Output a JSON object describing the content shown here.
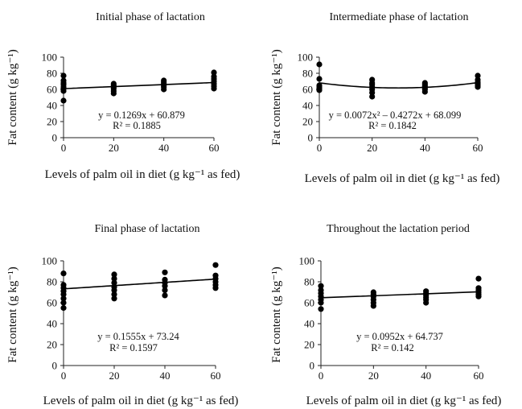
{
  "panels": [
    {
      "title": "Initial phase of lactation",
      "ylabel": "Fat content (g kg⁻¹)",
      "xlabel": "Levels of palm oil in diet (g kg⁻¹ as fed)",
      "equation": "y = 0.1269x + 60.879",
      "r2": "R² = 0.1885"
    },
    {
      "title": "Intermediate phase of lactation",
      "ylabel": "Fat content (g kg⁻¹)",
      "xlabel": "Levels of palm oil in diet (g kg⁻¹ as fed)",
      "equation": "y = 0.0072x² – 0.4272x + 68.099",
      "r2": "R² = 0.1842"
    },
    {
      "title": "Final phase of lactation",
      "ylabel": "Fat content (g kg⁻¹)",
      "xlabel": "Levels of palm oil in diet (g kg⁻¹ as fed)",
      "equation": "y = 0.1555x + 73.24",
      "r2": "R² = 0.1597"
    },
    {
      "title": "Throughout the lactation period",
      "ylabel": "Fat content (g kg⁻¹)",
      "xlabel": "Levels of palm oil in diet (g kg⁻¹ as fed)",
      "equation": "y = 0.0952x + 64.737",
      "r2": "R² = 0.142"
    }
  ],
  "chart_data": [
    {
      "type": "scatter",
      "title": "Initial phase of lactation",
      "xlabel": "Levels of palm oil in diet (g kg⁻¹ as fed)",
      "ylabel": "Fat content (g kg⁻¹)",
      "xticks": [
        0,
        20,
        40,
        60
      ],
      "yticks": [
        0,
        20,
        40,
        60,
        80,
        100
      ],
      "xlim": [
        0,
        60
      ],
      "ylim": [
        0,
        100
      ],
      "points": [
        {
          "x": 0,
          "y": 46
        },
        {
          "x": 0,
          "y": 58
        },
        {
          "x": 0,
          "y": 61
        },
        {
          "x": 0,
          "y": 63
        },
        {
          "x": 0,
          "y": 66
        },
        {
          "x": 0,
          "y": 68
        },
        {
          "x": 0,
          "y": 71
        },
        {
          "x": 0,
          "y": 77
        },
        {
          "x": 20,
          "y": 55
        },
        {
          "x": 20,
          "y": 58
        },
        {
          "x": 20,
          "y": 61
        },
        {
          "x": 20,
          "y": 63
        },
        {
          "x": 20,
          "y": 65
        },
        {
          "x": 20,
          "y": 67
        },
        {
          "x": 40,
          "y": 60
        },
        {
          "x": 40,
          "y": 63
        },
        {
          "x": 40,
          "y": 65
        },
        {
          "x": 40,
          "y": 67
        },
        {
          "x": 40,
          "y": 69
        },
        {
          "x": 40,
          "y": 71
        },
        {
          "x": 60,
          "y": 61
        },
        {
          "x": 60,
          "y": 64
        },
        {
          "x": 60,
          "y": 67
        },
        {
          "x": 60,
          "y": 70
        },
        {
          "x": 60,
          "y": 73
        },
        {
          "x": 60,
          "y": 76
        },
        {
          "x": 60,
          "y": 81
        }
      ],
      "trend": {
        "kind": "linear",
        "coef": [
          60.879,
          0.1269
        ]
      },
      "equation": "y = 0.1269x + 60.879",
      "r2": "R² = 0.1885",
      "grid": false
    },
    {
      "type": "scatter",
      "title": "Intermediate phase of lactation",
      "xlabel": "Levels of palm oil in diet (g kg⁻¹ as fed)",
      "ylabel": "Fat content (g kg⁻¹)",
      "xticks": [
        0,
        20,
        40,
        60
      ],
      "yticks": [
        0,
        20,
        40,
        60,
        80,
        100
      ],
      "xlim": [
        0,
        60
      ],
      "ylim": [
        0,
        100
      ],
      "points": [
        {
          "x": 0,
          "y": 59
        },
        {
          "x": 0,
          "y": 61
        },
        {
          "x": 0,
          "y": 63
        },
        {
          "x": 0,
          "y": 65
        },
        {
          "x": 0,
          "y": 73
        },
        {
          "x": 0,
          "y": 91
        },
        {
          "x": 20,
          "y": 51
        },
        {
          "x": 20,
          "y": 56
        },
        {
          "x": 20,
          "y": 60
        },
        {
          "x": 20,
          "y": 63
        },
        {
          "x": 20,
          "y": 66
        },
        {
          "x": 20,
          "y": 68
        },
        {
          "x": 20,
          "y": 72
        },
        {
          "x": 40,
          "y": 57
        },
        {
          "x": 40,
          "y": 60
        },
        {
          "x": 40,
          "y": 62
        },
        {
          "x": 40,
          "y": 64
        },
        {
          "x": 40,
          "y": 66
        },
        {
          "x": 40,
          "y": 68
        },
        {
          "x": 60,
          "y": 63
        },
        {
          "x": 60,
          "y": 65
        },
        {
          "x": 60,
          "y": 67
        },
        {
          "x": 60,
          "y": 69
        },
        {
          "x": 60,
          "y": 72
        },
        {
          "x": 60,
          "y": 77
        }
      ],
      "trend": {
        "kind": "quadratic",
        "coef": [
          68.099,
          -0.4272,
          0.0072
        ]
      },
      "equation": "y = 0.0072x² – 0.4272x + 68.099",
      "r2": "R² = 0.1842",
      "grid": false
    },
    {
      "type": "scatter",
      "title": "Final phase of lactation",
      "xlabel": "Levels of palm oil in diet (g kg⁻¹ as fed)",
      "ylabel": "Fat content (g kg⁻¹)",
      "xticks": [
        0,
        20,
        40,
        60
      ],
      "yticks": [
        0,
        20,
        40,
        60,
        80,
        100
      ],
      "xlim": [
        0,
        60
      ],
      "ylim": [
        0,
        100
      ],
      "points": [
        {
          "x": 0,
          "y": 55
        },
        {
          "x": 0,
          "y": 60
        },
        {
          "x": 0,
          "y": 64
        },
        {
          "x": 0,
          "y": 68
        },
        {
          "x": 0,
          "y": 71
        },
        {
          "x": 0,
          "y": 74
        },
        {
          "x": 0,
          "y": 77
        },
        {
          "x": 0,
          "y": 88
        },
        {
          "x": 20,
          "y": 64
        },
        {
          "x": 20,
          "y": 68
        },
        {
          "x": 20,
          "y": 72
        },
        {
          "x": 20,
          "y": 75
        },
        {
          "x": 20,
          "y": 79
        },
        {
          "x": 20,
          "y": 83
        },
        {
          "x": 20,
          "y": 87
        },
        {
          "x": 40,
          "y": 67
        },
        {
          "x": 40,
          "y": 72
        },
        {
          "x": 40,
          "y": 76
        },
        {
          "x": 40,
          "y": 79
        },
        {
          "x": 40,
          "y": 82
        },
        {
          "x": 40,
          "y": 89
        },
        {
          "x": 60,
          "y": 74
        },
        {
          "x": 60,
          "y": 77
        },
        {
          "x": 60,
          "y": 80
        },
        {
          "x": 60,
          "y": 83
        },
        {
          "x": 60,
          "y": 86
        },
        {
          "x": 60,
          "y": 96
        }
      ],
      "trend": {
        "kind": "linear",
        "coef": [
          73.24,
          0.1555
        ]
      },
      "equation": "y = 0.1555x + 73.24",
      "r2": "R² = 0.1597",
      "grid": false
    },
    {
      "type": "scatter",
      "title": "Throughout the lactation period",
      "xlabel": "Levels of palm oil in diet (g kg⁻¹ as fed)",
      "ylabel": "Fat content (g kg⁻¹)",
      "xticks": [
        0,
        20,
        40,
        60
      ],
      "yticks": [
        0,
        20,
        40,
        60,
        80,
        100
      ],
      "xlim": [
        0,
        60
      ],
      "ylim": [
        0,
        100
      ],
      "points": [
        {
          "x": 0,
          "y": 54
        },
        {
          "x": 0,
          "y": 60
        },
        {
          "x": 0,
          "y": 63
        },
        {
          "x": 0,
          "y": 66
        },
        {
          "x": 0,
          "y": 69
        },
        {
          "x": 0,
          "y": 72
        },
        {
          "x": 0,
          "y": 76
        },
        {
          "x": 20,
          "y": 57
        },
        {
          "x": 20,
          "y": 60
        },
        {
          "x": 20,
          "y": 63
        },
        {
          "x": 20,
          "y": 66
        },
        {
          "x": 20,
          "y": 68
        },
        {
          "x": 20,
          "y": 70
        },
        {
          "x": 40,
          "y": 60
        },
        {
          "x": 40,
          "y": 63
        },
        {
          "x": 40,
          "y": 65
        },
        {
          "x": 40,
          "y": 67
        },
        {
          "x": 40,
          "y": 69
        },
        {
          "x": 40,
          "y": 71
        },
        {
          "x": 60,
          "y": 66
        },
        {
          "x": 60,
          "y": 68
        },
        {
          "x": 60,
          "y": 70
        },
        {
          "x": 60,
          "y": 72
        },
        {
          "x": 60,
          "y": 74
        },
        {
          "x": 60,
          "y": 83
        }
      ],
      "trend": {
        "kind": "linear",
        "coef": [
          64.737,
          0.0952
        ]
      },
      "equation": "y = 0.0952x + 64.737",
      "r2": "R² = 0.142",
      "grid": false
    }
  ]
}
